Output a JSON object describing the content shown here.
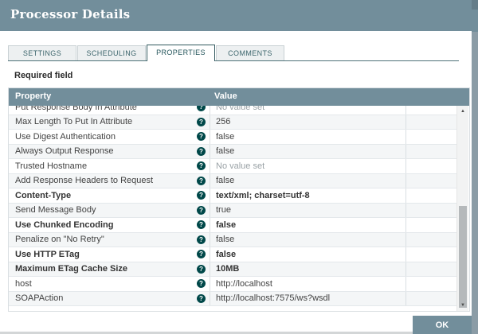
{
  "dialog": {
    "title": "Processor Details",
    "tabs": [
      {
        "label": "SETTINGS",
        "active": false
      },
      {
        "label": "SCHEDULING",
        "active": false
      },
      {
        "label": "PROPERTIES",
        "active": true
      },
      {
        "label": "COMMENTS",
        "active": false
      }
    ],
    "required_field_label": "Required field",
    "properties_table": {
      "column_headers": {
        "property": "Property",
        "value": "Value"
      },
      "rows": [
        {
          "property": "Put Response Body In Attribute",
          "value": "No value set",
          "required": false,
          "unset": true
        },
        {
          "property": "Max Length To Put In Attribute",
          "value": "256",
          "required": false,
          "unset": false
        },
        {
          "property": "Use Digest Authentication",
          "value": "false",
          "required": false,
          "unset": false
        },
        {
          "property": "Always Output Response",
          "value": "false",
          "required": false,
          "unset": false
        },
        {
          "property": "Trusted Hostname",
          "value": "No value set",
          "required": false,
          "unset": true
        },
        {
          "property": "Add Response Headers to Request",
          "value": "false",
          "required": false,
          "unset": false
        },
        {
          "property": "Content-Type",
          "value": "text/xml; charset=utf-8",
          "required": true,
          "unset": false
        },
        {
          "property": "Send Message Body",
          "value": "true",
          "required": false,
          "unset": false
        },
        {
          "property": "Use Chunked Encoding",
          "value": "false",
          "required": true,
          "unset": false
        },
        {
          "property": "Penalize on \"No Retry\"",
          "value": "false",
          "required": false,
          "unset": false
        },
        {
          "property": "Use HTTP ETag",
          "value": "false",
          "required": true,
          "unset": false
        },
        {
          "property": "Maximum ETag Cache Size",
          "value": "10MB",
          "required": true,
          "unset": false
        },
        {
          "property": "host",
          "value": "http://localhost",
          "required": false,
          "unset": false
        },
        {
          "property": "SOAPAction",
          "value": "http://localhost:7575/ws?wsdl",
          "required": false,
          "unset": false
        }
      ]
    },
    "ok_button_label": "OK"
  },
  "icons": {
    "help": "?",
    "scroll_up": "▲",
    "scroll_down": "▼"
  },
  "colors": {
    "titlebar": "#728e9b",
    "table_header": "#728e9b",
    "ok_button": "#728e9b",
    "help_icon": "#004849",
    "tab_underline": "#4e7178",
    "row_alt": "#f4f6f7",
    "unset_value": "#9aa2a6"
  }
}
